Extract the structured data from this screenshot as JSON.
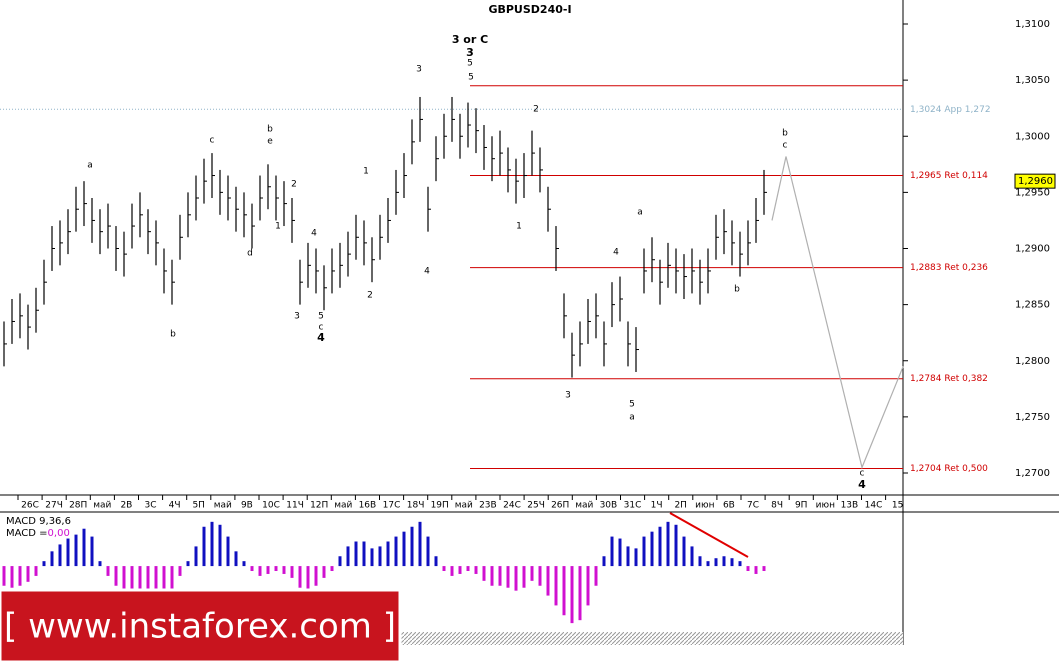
{
  "chart_data": {
    "type": "ohlc",
    "title": "GBPUSD240-I",
    "ylim": [
      1.2675,
      1.3115
    ],
    "yticks": [
      {
        "value": 1.31,
        "label": "1,3100"
      },
      {
        "value": 1.305,
        "label": "1,3050"
      },
      {
        "value": 1.3,
        "label": "1,3000"
      },
      {
        "value": 1.295,
        "label": "1,2950"
      },
      {
        "value": 1.29,
        "label": "1,2900"
      },
      {
        "value": 1.285,
        "label": "1,2850"
      },
      {
        "value": 1.28,
        "label": "1,2800"
      },
      {
        "value": 1.275,
        "label": "1,2750"
      },
      {
        "value": 1.27,
        "label": "1,2700"
      }
    ],
    "categories": [
      "26С",
      "27Ч",
      "28П",
      "май",
      "2В",
      "3С",
      "4Ч",
      "5П",
      "май",
      "9В",
      "10С",
      "11Ч",
      "12П",
      "май",
      "16В",
      "17С",
      "18Ч",
      "19П",
      "май",
      "23В",
      "24С",
      "25Ч",
      "26П",
      "май",
      "30В",
      "31С",
      "1Ч",
      "2П",
      "июн",
      "6В",
      "7С",
      "8Ч",
      "9П",
      "июн",
      "13В",
      "14С",
      "15"
    ],
    "color": "#000000",
    "high": [
      1.2835,
      1.2855,
      1.286,
      1.285,
      1.2865,
      1.289,
      1.292,
      1.2925,
      1.2935,
      1.2955,
      1.296,
      1.2945,
      1.2935,
      1.294,
      1.292,
      1.2915,
      1.294,
      1.295,
      1.2935,
      1.2925,
      1.29,
      1.289,
      1.293,
      1.295,
      1.2965,
      1.298,
      1.2985,
      1.297,
      1.2965,
      1.2955,
      1.295,
      1.294,
      1.2965,
      1.2975,
      1.2965,
      1.296,
      1.2945,
      1.289,
      1.2905,
      1.29,
      1.2885,
      1.29,
      1.2905,
      1.2915,
      1.293,
      1.2925,
      1.291,
      1.293,
      1.2945,
      1.297,
      1.2985,
      1.3015,
      1.3035,
      1.2955,
      1.3,
      1.302,
      1.3035,
      1.302,
      1.303,
      1.3025,
      1.301,
      1.3,
      1.3005,
      1.299,
      1.298,
      1.2985,
      1.3005,
      1.299,
      1.2955,
      1.292,
      1.286,
      1.2825,
      1.2835,
      1.2855,
      1.286,
      1.2835,
      1.287,
      1.2875,
      1.2835,
      1.283,
      1.29,
      1.291,
      1.289,
      1.2905,
      1.29,
      1.2895,
      1.29,
      1.289,
      1.29,
      1.293,
      1.2935,
      1.2925,
      1.2915,
      1.2925,
      1.2945,
      1.297
    ],
    "low": [
      1.2795,
      1.2815,
      1.282,
      1.281,
      1.2825,
      1.285,
      1.288,
      1.2885,
      1.2895,
      1.2915,
      1.292,
      1.2905,
      1.2895,
      1.29,
      1.288,
      1.2875,
      1.29,
      1.291,
      1.2895,
      1.2885,
      1.286,
      1.285,
      1.289,
      1.291,
      1.2925,
      1.294,
      1.2945,
      1.293,
      1.2925,
      1.2915,
      1.291,
      1.29,
      1.2925,
      1.2935,
      1.2925,
      1.292,
      1.2905,
      1.285,
      1.2865,
      1.286,
      1.2845,
      1.286,
      1.2865,
      1.2875,
      1.289,
      1.2885,
      1.287,
      1.289,
      1.2905,
      1.293,
      1.2945,
      1.2975,
      1.2995,
      1.2915,
      1.296,
      1.298,
      1.2995,
      1.298,
      1.299,
      1.2985,
      1.297,
      1.296,
      1.2965,
      1.295,
      1.294,
      1.2945,
      1.2965,
      1.295,
      1.2915,
      1.288,
      1.282,
      1.2785,
      1.2795,
      1.2815,
      1.282,
      1.2795,
      1.283,
      1.2835,
      1.2795,
      1.279,
      1.286,
      1.287,
      1.285,
      1.2865,
      1.286,
      1.2855,
      1.286,
      1.285,
      1.286,
      1.289,
      1.2895,
      1.2885,
      1.2875,
      1.2885,
      1.2905,
      1.293
    ],
    "forecast": {
      "color": "#b0b0b0",
      "x": [
        96,
        97.75,
        107.25,
        112.4
      ],
      "values": [
        1.2925,
        1.2982,
        1.2705,
        1.2795
      ]
    },
    "levels": [
      {
        "value": 1.3045,
        "color": "#d00000"
      },
      {
        "value": 1.2965,
        "label": "1,2965 Ret 0,114",
        "color": "#d00000"
      },
      {
        "value": 1.2883,
        "label": "1,2883 Ret 0,236",
        "color": "#d00000"
      },
      {
        "value": 1.2784,
        "label": "1,2784 Ret 0,382",
        "color": "#d00000"
      },
      {
        "value": 1.2704,
        "label": "1,2704 Ret 0,500",
        "color": "#d00000"
      }
    ],
    "app_level": {
      "value": 1.3024,
      "label": "1,3024 App 1,272",
      "color": "#8fb3c8"
    },
    "last_price": {
      "value": 1.296,
      "label": "1,2960"
    },
    "annotations": [
      {
        "text": "a",
        "color": "#000"
      },
      {
        "text": "b",
        "color": "#000"
      },
      {
        "text": "c",
        "color": "#000"
      },
      {
        "text": "b",
        "color": "#8b1a1a"
      },
      {
        "text": "e",
        "color": "#000"
      },
      {
        "text": "d",
        "color": "#000"
      },
      {
        "text": "1",
        "color": "#000"
      },
      {
        "text": "2",
        "color": "#000"
      },
      {
        "text": "3",
        "color": "#000"
      },
      {
        "text": "4",
        "color": "#000"
      },
      {
        "text": "5",
        "color": "#000"
      },
      {
        "text": "c",
        "color": "#8b1a1a"
      },
      {
        "text": "4",
        "color": "#1010c0"
      },
      {
        "text": "1",
        "color": "#000"
      },
      {
        "text": "2",
        "color": "#000"
      },
      {
        "text": "3",
        "color": "#000"
      },
      {
        "text": "4",
        "color": "#000"
      },
      {
        "text": "3 or C",
        "color": "#1010c0"
      },
      {
        "text": "3",
        "color": "#000"
      },
      {
        "text": "5",
        "color": "#1010c0"
      },
      {
        "text": "5",
        "color": "#000"
      },
      {
        "text": "2",
        "color": "#000"
      },
      {
        "text": "1",
        "color": "#000"
      },
      {
        "text": "3",
        "color": "#000"
      },
      {
        "text": "4",
        "color": "#000"
      },
      {
        "text": "5",
        "color": "#000"
      },
      {
        "text": "a",
        "color": "#8b1a1a"
      },
      {
        "text": "a",
        "color": "#000"
      },
      {
        "text": "b",
        "color": "#000"
      },
      {
        "text": "b",
        "color": "#8b1a1a"
      },
      {
        "text": "c",
        "color": "#000"
      },
      {
        "text": "c",
        "color": "#000"
      },
      {
        "text": "4",
        "color": "#000"
      }
    ],
    "macd": {
      "label": "MACD 9,36,6",
      "value_prefix": "MACD =",
      "value_label": "0,00",
      "ylim": [
        -0.0065,
        0.0055
      ],
      "positive_color": "#1010c0",
      "negative_color": "#d010d0",
      "values": [
        -0.002,
        -0.0022,
        -0.002,
        -0.0016,
        -0.001,
        0.0005,
        0.0015,
        0.0022,
        0.0028,
        0.0032,
        0.0038,
        0.003,
        0.0005,
        -0.001,
        -0.002,
        -0.0025,
        -0.003,
        -0.0028,
        -0.003,
        -0.0032,
        -0.0028,
        -0.0025,
        -0.001,
        0.0005,
        0.002,
        0.004,
        0.0045,
        0.0042,
        0.003,
        0.0015,
        0.0005,
        -0.0005,
        -0.001,
        -0.0008,
        -0.0005,
        -0.0008,
        -0.0012,
        -0.0022,
        -0.0025,
        -0.002,
        -0.0012,
        -0.0005,
        0.001,
        0.002,
        0.0025,
        0.0025,
        0.0018,
        0.002,
        0.0025,
        0.003,
        0.0035,
        0.004,
        0.0045,
        0.003,
        0.001,
        -0.0005,
        -0.001,
        -0.0008,
        -0.0005,
        -0.0008,
        -0.0015,
        -0.002,
        -0.002,
        -0.0022,
        -0.0025,
        -0.0022,
        -0.0015,
        -0.002,
        -0.003,
        -0.004,
        -0.005,
        -0.0058,
        -0.0055,
        -0.004,
        -0.002,
        0.001,
        0.003,
        0.0028,
        0.002,
        0.0018,
        0.003,
        0.0035,
        0.004,
        0.0045,
        0.0042,
        0.003,
        0.002,
        0.001,
        0.0005,
        0.0008,
        0.001,
        0.0008,
        0.0005,
        -0.0005,
        -0.0008,
        -0.0005
      ]
    },
    "banner": "[ www.instaforex.com ]"
  }
}
